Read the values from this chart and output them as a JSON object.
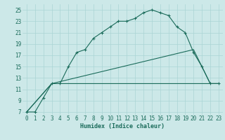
{
  "xlabel": "Humidex (Indice chaleur)",
  "bg_color": "#cce8e8",
  "line_color": "#1a6b5a",
  "grid_color": "#aad4d4",
  "xlim": [
    -0.5,
    23.5
  ],
  "ylim": [
    6.5,
    26
  ],
  "xticks": [
    0,
    1,
    2,
    3,
    4,
    5,
    6,
    7,
    8,
    9,
    10,
    11,
    12,
    13,
    14,
    15,
    16,
    17,
    18,
    19,
    20,
    21,
    22,
    23
  ],
  "yticks": [
    7,
    9,
    11,
    13,
    15,
    17,
    19,
    21,
    23,
    25
  ],
  "curve1_x": [
    0,
    1,
    2,
    3,
    4,
    5,
    6,
    7,
    8,
    9,
    10,
    11,
    12,
    13,
    14,
    15,
    16,
    17,
    18,
    19,
    20,
    21,
    22,
    23
  ],
  "curve1_y": [
    7,
    7,
    9.5,
    12,
    12,
    15,
    17.5,
    18,
    20,
    21,
    22,
    23,
    23,
    23.5,
    24.5,
    25,
    24.5,
    24,
    22,
    21,
    17.5,
    15,
    12,
    12
  ],
  "curve2_x": [
    0,
    3,
    20,
    22,
    23
  ],
  "curve2_y": [
    7,
    12,
    18,
    12,
    12
  ],
  "curve3_x": [
    0,
    3,
    10,
    15,
    18,
    20,
    22,
    23
  ],
  "curve3_y": [
    7,
    12,
    12,
    12,
    12,
    12,
    12,
    12
  ],
  "tick_fontsize": 5.5,
  "label_fontsize": 6.0
}
